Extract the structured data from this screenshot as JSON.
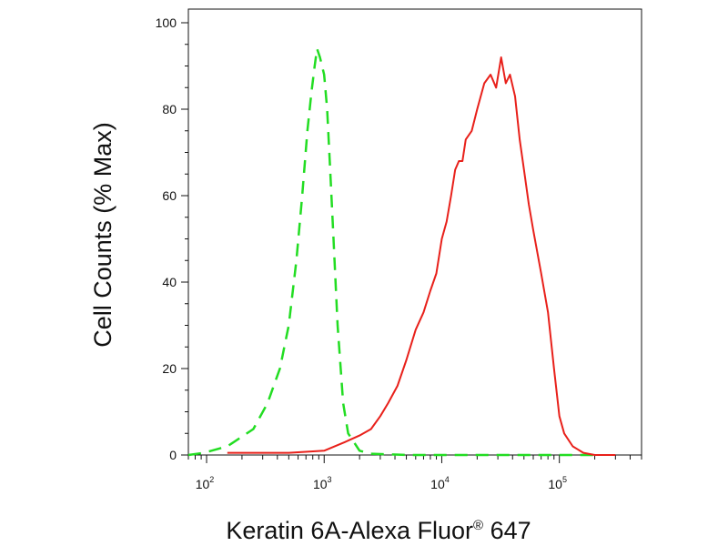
{
  "chart_data": {
    "type": "line",
    "title": "",
    "xlabel": "Keratin 6A-Alexa Fluor",
    "xlabel_superscript": "®",
    "xlabel_suffix": " 647",
    "ylabel": "Cell Counts (% Max)",
    "xscale": "log",
    "xlim": [
      70,
      500000
    ],
    "ylim": [
      0,
      100
    ],
    "grid": false,
    "legend": "none",
    "x_tick_labels": [
      {
        "base": "10",
        "exp": "2",
        "value": 100
      },
      {
        "base": "10",
        "exp": "3",
        "value": 1000
      },
      {
        "base": "10",
        "exp": "4",
        "value": 10000
      },
      {
        "base": "10",
        "exp": "5",
        "value": 100000
      }
    ],
    "y_ticks": [
      0,
      20,
      40,
      60,
      80,
      100
    ],
    "series": [
      {
        "style": "dashed",
        "color": "#22dd22",
        "x": [
          70,
          95,
          150,
          250,
          330,
          420,
          500,
          580,
          650,
          720,
          780,
          830,
          870,
          920,
          1000,
          1060,
          1120,
          1200,
          1300,
          1450,
          1600,
          2000,
          2500,
          5000,
          10000,
          100000,
          200000
        ],
        "y": [
          0,
          0.5,
          2,
          6,
          12,
          20,
          30,
          45,
          60,
          75,
          84,
          90,
          94,
          92,
          88,
          80,
          67,
          50,
          30,
          12,
          5,
          1,
          0.3,
          0,
          0,
          0,
          0
        ]
      },
      {
        "style": "solid",
        "color": "#e8201a",
        "x": [
          150,
          500,
          1000,
          1500,
          2000,
          2500,
          3000,
          3500,
          4200,
          5000,
          6000,
          7000,
          8000,
          9000,
          10000,
          11000,
          12000,
          13000,
          14000,
          15000,
          16000,
          18000,
          20000,
          23000,
          26000,
          29000,
          32000,
          35000,
          38000,
          42000,
          46000,
          50000,
          55000,
          60000,
          70000,
          80000,
          90000,
          100000,
          110000,
          130000,
          160000,
          200000,
          300000
        ],
        "y": [
          0.5,
          0.5,
          1,
          3,
          4.5,
          6,
          9,
          12,
          16,
          22,
          29,
          33,
          38,
          42,
          50,
          54,
          60,
          66,
          68,
          68,
          73,
          75,
          80,
          86,
          88,
          85,
          92,
          86,
          88,
          83,
          73,
          66,
          58,
          52,
          42,
          33,
          20,
          9,
          5,
          2,
          0.5,
          0,
          0
        ]
      }
    ]
  }
}
